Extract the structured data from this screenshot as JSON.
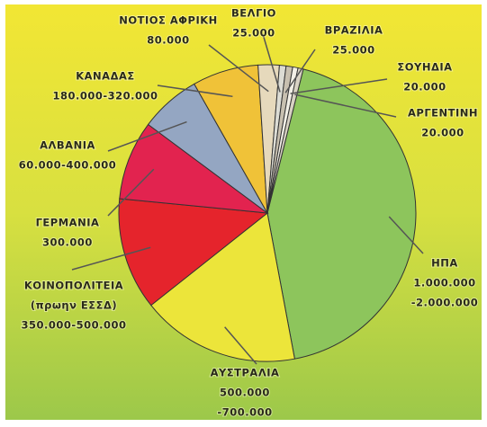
{
  "chart_data": {
    "type": "pie",
    "categories": [
      "ΗΠΑ",
      "ΑΥΣΤΡΑΛΙΑ",
      [
        "ΚΟΙΝΟΠΟΛΙΤΕΙΑ",
        "(πρωην ΕΣΣΔ)"
      ],
      "ΓΕΡΜΑΝΙΑ",
      "ΑΛΒΑΝΙΑ",
      "ΚΑΝΑΔΑΣ",
      "ΝΟΤΙΟΣ ΑΦΡΙΚΗ",
      "ΒΕΛΓΙΟ",
      "ΒΡΑΖΙΛΙΑ",
      "ΣΟΥΗΔΙΑ",
      "ΑΡΓΕΝΤΙΝΗ"
    ],
    "values": [
      [
        1000000,
        2000000
      ],
      [
        500000,
        700000
      ],
      [
        350000,
        500000
      ],
      300000,
      [
        60000,
        400000
      ],
      [
        180000,
        320000
      ],
      80000,
      25000,
      25000,
      20000,
      20000
    ],
    "value_labels": [
      [
        "1.000.000",
        "-2.000.000"
      ],
      [
        "500.000",
        "-700.000"
      ],
      "350.000-500.000",
      "300.000",
      "60.000-400.000",
      "180.000-320.000",
      "80.000",
      "25.000",
      "25.000",
      "20.000",
      "20.000"
    ],
    "colors": [
      "#8dc55c",
      "#ece53a",
      "#e5242c",
      "#e2234f",
      "#94a6c2",
      "#f0c238",
      "#e6d9bc",
      "#dcdcd4",
      "#c8c0b0",
      "#f2efe6",
      "#d8d2c4"
    ]
  }
}
